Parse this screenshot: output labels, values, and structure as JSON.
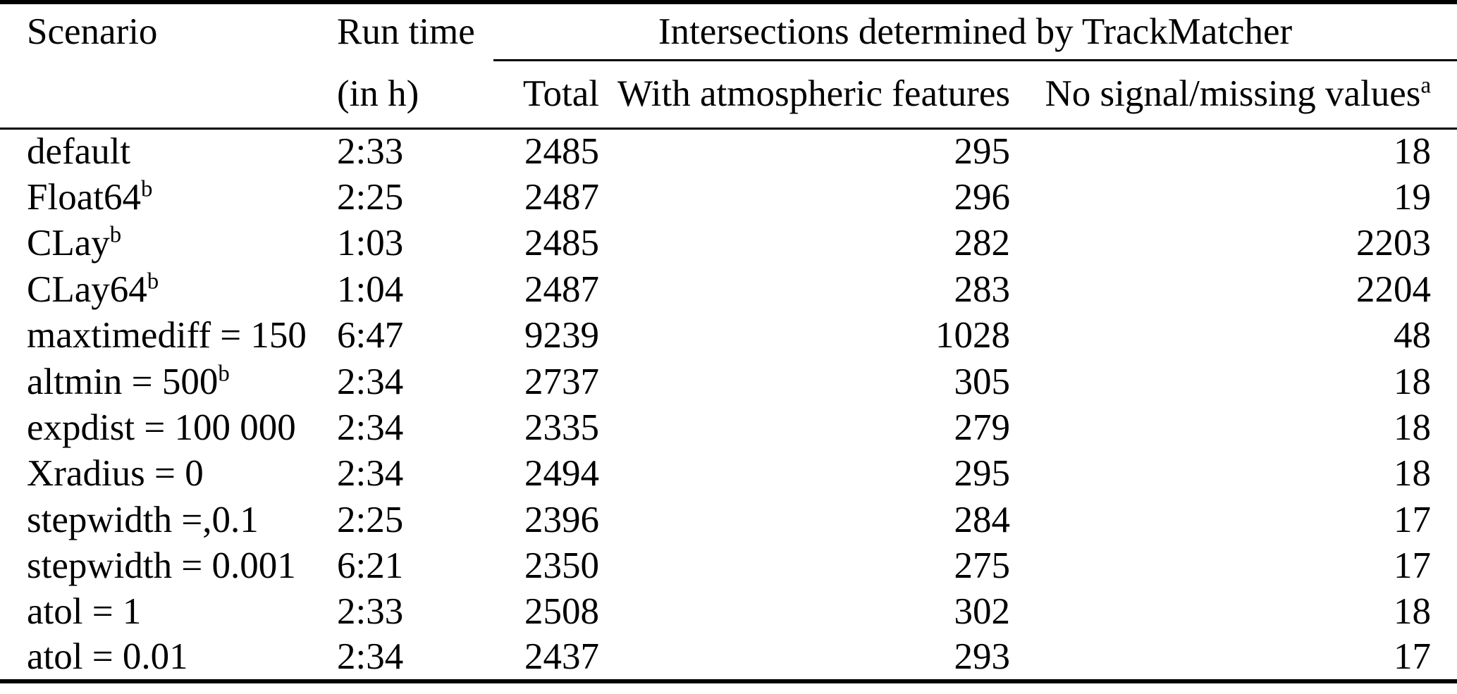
{
  "colors": {
    "background": "#ffffff",
    "text": "#000000",
    "rule": "#000000"
  },
  "table": {
    "headers": {
      "scenario": "Scenario",
      "runtime_line1": "Run time",
      "runtime_line2": "(in h)",
      "group": "Intersections determined by TrackMatcher",
      "total": "Total",
      "with_features": "With atmospheric features",
      "no_signal": "No signal/missing values",
      "no_signal_sup": "a"
    },
    "rows": [
      {
        "scenario": "default",
        "sup": "",
        "runtime": "2:33",
        "total": "2485",
        "with_features": "295",
        "no_signal": "18"
      },
      {
        "scenario": "Float64",
        "sup": "b",
        "runtime": "2:25",
        "total": "2487",
        "with_features": "296",
        "no_signal": "19"
      },
      {
        "scenario": "CLay",
        "sup": "b",
        "runtime": "1:03",
        "total": "2485",
        "with_features": "282",
        "no_signal": "2203"
      },
      {
        "scenario": "CLay64",
        "sup": "b",
        "runtime": "1:04",
        "total": "2487",
        "with_features": "283",
        "no_signal": "2204"
      },
      {
        "scenario": "maxtimediff = 150",
        "sup": "",
        "runtime": "6:47",
        "total": "9239",
        "with_features": "1028",
        "no_signal": "48"
      },
      {
        "scenario": "altmin = 500",
        "sup": "b",
        "runtime": "2:34",
        "total": "2737",
        "with_features": "305",
        "no_signal": "18"
      },
      {
        "scenario": "expdist = 100 000",
        "sup": "",
        "runtime": "2:34",
        "total": "2335",
        "with_features": "279",
        "no_signal": "18"
      },
      {
        "scenario": "Xradius = 0",
        "sup": "",
        "runtime": "2:34",
        "total": "2494",
        "with_features": "295",
        "no_signal": "18"
      },
      {
        "scenario": "stepwidth =,0.1",
        "sup": "",
        "runtime": "2:25",
        "total": "2396",
        "with_features": "284",
        "no_signal": "17"
      },
      {
        "scenario": "stepwidth = 0.001",
        "sup": "",
        "runtime": "6:21",
        "total": "2350",
        "with_features": "275",
        "no_signal": "17"
      },
      {
        "scenario": "atol = 1",
        "sup": "",
        "runtime": "2:33",
        "total": "2508",
        "with_features": "302",
        "no_signal": "18"
      },
      {
        "scenario": "atol = 0.01",
        "sup": "",
        "runtime": "2:34",
        "total": "2437",
        "with_features": "293",
        "no_signal": "17"
      }
    ]
  }
}
